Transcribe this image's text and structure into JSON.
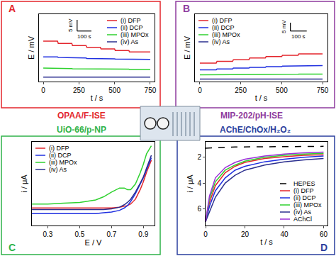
{
  "chart_data": [
    {
      "type": "line",
      "panel": "A",
      "title": "OPAA/F-ISE",
      "x_label": "t / s",
      "y_label": "E / mV",
      "x": [
        0,
        100,
        105,
        200,
        205,
        300,
        305,
        400,
        405,
        500,
        505,
        600,
        605,
        750
      ],
      "series": [
        {
          "name": "(i) DFP",
          "color": "#e3262d",
          "values": [
            18,
            18,
            17,
            17,
            16,
            16,
            15.2,
            15.2,
            14.5,
            14.5,
            13.8,
            13.8,
            13.2,
            13.2
          ]
        },
        {
          "name": "(ii) DCP",
          "color": "#1f2fe0",
          "values": [
            11,
            11,
            10.7,
            10.7,
            10.5,
            10.5,
            10.3,
            10.3,
            10.1,
            10.1,
            10,
            10,
            9.9,
            9.9
          ]
        },
        {
          "name": "(iii) MPOx",
          "color": "#2fd12f",
          "values": [
            6,
            6,
            5.8,
            5.8,
            5.7,
            5.7,
            5.6,
            5.6,
            5.5,
            5.5,
            5.5,
            5.5,
            5.4,
            5.4
          ]
        },
        {
          "name": "(iv) As",
          "color": "#2b2f8f",
          "values": [
            2,
            2,
            2,
            2,
            2,
            2,
            2,
            2,
            2,
            2,
            2,
            2,
            2,
            2
          ]
        }
      ],
      "xlim": [
        -30,
        780
      ],
      "xticks": [
        0,
        250,
        500,
        750
      ],
      "ylim": [
        0,
        30
      ],
      "tick_labels": "x",
      "grid": false,
      "legend": "upper right",
      "scale_bar": {
        "x": 100,
        "y": 5,
        "x_label": "100 s",
        "y_label": "5 mV"
      }
    },
    {
      "type": "line",
      "panel": "B",
      "title": "MIP-202/pH-ISE",
      "x_label": "t / s",
      "y_label": "E / mV",
      "x": [
        0,
        100,
        105,
        200,
        205,
        300,
        305,
        400,
        405,
        500,
        505,
        600,
        605,
        750
      ],
      "series": [
        {
          "name": "(i) DFP",
          "color": "#e3262d",
          "values": [
            11,
            11,
            12,
            12,
            13,
            13,
            14,
            14,
            14.8,
            14.8,
            15.6,
            15.6,
            16.4,
            16.4
          ]
        },
        {
          "name": "(ii) DCP",
          "color": "#1f2fe0",
          "values": [
            7,
            7,
            7.5,
            7.5,
            8,
            8,
            8.4,
            8.4,
            8.8,
            8.8,
            9.2,
            9.2,
            9.5,
            9.5
          ]
        },
        {
          "name": "(iii) MPOx",
          "color": "#2fd12f",
          "values": [
            4,
            4,
            4.1,
            4.1,
            4.2,
            4.2,
            4.2,
            4.2,
            4.3,
            4.3,
            4.3,
            4.3,
            4.4,
            4.4
          ]
        },
        {
          "name": "(iv) As",
          "color": "#2b2f8f",
          "values": [
            1.5,
            1.5,
            1.5,
            1.5,
            1.5,
            1.5,
            1.5,
            1.5,
            1.5,
            1.5,
            1.5,
            1.5,
            1.5,
            1.5
          ]
        }
      ],
      "xlim": [
        -30,
        780
      ],
      "xticks": [
        0,
        250,
        500,
        750
      ],
      "ylim": [
        0,
        40
      ],
      "tick_labels": "x",
      "grid": false,
      "legend": "upper left",
      "scale_bar": {
        "x": 100,
        "y": 5,
        "x_label": "100 s",
        "y_label": "5 mV"
      }
    },
    {
      "type": "line",
      "panel": "C",
      "title": "UiO-66/p-NP",
      "x_label": "E / V",
      "y_label": "i / μA",
      "x": [
        0.2,
        0.3,
        0.4,
        0.5,
        0.6,
        0.65,
        0.7,
        0.75,
        0.78,
        0.8,
        0.82,
        0.85,
        0.88,
        0.9,
        0.92,
        0.95
      ],
      "series": [
        {
          "name": "(i) DFP",
          "color": "#e3262d",
          "values": [
            0.22,
            0.22,
            0.22,
            0.22,
            0.22,
            0.22,
            0.22,
            0.23,
            0.24,
            0.25,
            0.27,
            0.33,
            0.45,
            0.55,
            0.67,
            0.82
          ]
        },
        {
          "name": "(ii) DCP",
          "color": "#1f2fe0",
          "values": [
            0.15,
            0.15,
            0.15,
            0.15,
            0.15,
            0.16,
            0.17,
            0.19,
            0.22,
            0.25,
            0.3,
            0.4,
            0.52,
            0.6,
            0.7,
            0.85
          ]
        },
        {
          "name": "(iii) MPOx",
          "color": "#2fd12f",
          "values": [
            0.27,
            0.27,
            0.28,
            0.29,
            0.32,
            0.36,
            0.42,
            0.47,
            0.47,
            0.45,
            0.45,
            0.52,
            0.66,
            0.77,
            0.9,
            1.0
          ]
        },
        {
          "name": "(iv) As",
          "color": "#2b2f8f",
          "values": [
            0.2,
            0.2,
            0.2,
            0.2,
            0.2,
            0.2,
            0.21,
            0.23,
            0.26,
            0.29,
            0.33,
            0.42,
            0.53,
            0.61,
            0.72,
            0.88
          ]
        }
      ],
      "xlim": [
        0.2,
        0.97
      ],
      "xticks": [
        0.3,
        0.5,
        0.7,
        0.9
      ],
      "ylim": [
        0,
        1.05
      ],
      "tick_labels": "x",
      "grid": false,
      "legend": "upper left"
    },
    {
      "type": "line",
      "panel": "D",
      "title": "AChE/ChOx/H₂O₂",
      "x_label": "t / s",
      "y_label": "i / μA",
      "x": [
        0,
        2,
        5,
        10,
        15,
        20,
        30,
        40,
        50,
        60
      ],
      "series": [
        {
          "name": "HEPES",
          "color": "#000000",
          "line_style": "dashed",
          "values": [
            1.3,
            1.28,
            1.25,
            1.22,
            1.2,
            1.2,
            1.18,
            1.17,
            1.16,
            1.15
          ]
        },
        {
          "name": "(i) DFP",
          "color": "#e3262d",
          "values": [
            7,
            5.5,
            4.2,
            3.2,
            2.7,
            2.4,
            2.1,
            1.95,
            1.85,
            1.8
          ]
        },
        {
          "name": "(ii) DCP",
          "color": "#1f2fe0",
          "values": [
            7,
            5.8,
            4.6,
            3.6,
            3.0,
            2.7,
            2.35,
            2.15,
            2.0,
            1.9
          ]
        },
        {
          "name": "(iii) MPOx",
          "color": "#2fd12f",
          "values": [
            7,
            5.2,
            3.9,
            3.0,
            2.6,
            2.3,
            2.0,
            1.85,
            1.75,
            1.7
          ]
        },
        {
          "name": "(iv) As",
          "color": "#2b2f8f",
          "values": [
            7,
            6.2,
            5.1,
            4.0,
            3.4,
            3.0,
            2.6,
            2.35,
            2.2,
            2.1
          ]
        },
        {
          "name": "AChCl",
          "color": "#9b30d9",
          "values": [
            7,
            5.0,
            3.6,
            2.8,
            2.4,
            2.15,
            1.9,
            1.75,
            1.65,
            1.6
          ]
        }
      ],
      "xlim": [
        0,
        62
      ],
      "xticks": [
        0,
        20,
        40,
        60
      ],
      "ylim": [
        7.3,
        0.8
      ],
      "yticks": [
        2,
        4,
        6
      ],
      "grid": false,
      "legend": "lower right"
    }
  ]
}
